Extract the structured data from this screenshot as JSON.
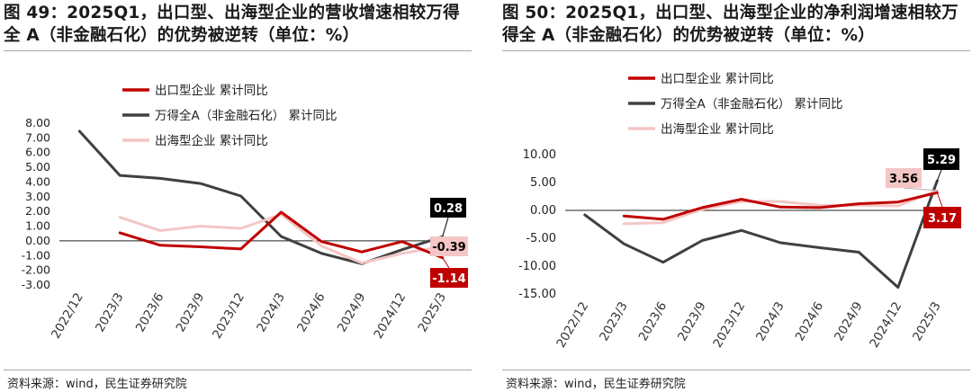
{
  "chart_data": [
    {
      "type": "line",
      "title": "图 49：2025Q1，出口型、出海型企业的营收增速相较万得全 A（非金融石化）的优势被逆转（单位：%）",
      "source": "资料来源：wind，民生证券研究院",
      "categories": [
        "2022/12",
        "2023/3",
        "2023/6",
        "2023/9",
        "2023/12",
        "2024/3",
        "2024/6",
        "2024/9",
        "2024/12",
        "2025/3"
      ],
      "ylim": [
        -3,
        8
      ],
      "yticks": [
        8,
        7,
        6,
        5,
        4,
        3,
        2,
        1,
        0,
        -1,
        -2,
        -3
      ],
      "ytick_labels": [
        "8.00",
        "7.00",
        "6.00",
        "5.00",
        "4.00",
        "3.00",
        "2.00",
        "1.00",
        "0.00",
        "-1.00",
        "-2.00",
        "-3.00"
      ],
      "legend_position": "top-left",
      "series": [
        {
          "name": "出口型企业 累计同比",
          "color": "#c00000",
          "values": [
            null,
            0.55,
            -0.3,
            -0.4,
            -0.55,
            1.95,
            -0.05,
            -0.75,
            -0.05,
            -1.14
          ]
        },
        {
          "name": "万得全A（非金融石化） 累计同比",
          "color": "#404040",
          "values": [
            7.45,
            4.45,
            4.25,
            3.9,
            3.05,
            0.3,
            -0.85,
            -1.55,
            -0.6,
            0.28
          ]
        },
        {
          "name": "出海型企业 累计同比",
          "color": "#f4c6c6",
          "values": [
            null,
            1.6,
            0.7,
            1.0,
            0.85,
            1.8,
            -0.35,
            -1.5,
            -0.85,
            -0.39
          ]
        }
      ],
      "callouts": [
        {
          "text": "0.28",
          "series": 1
        },
        {
          "text": "-0.39",
          "series": 2
        },
        {
          "text": "-1.14",
          "series": 0
        }
      ]
    },
    {
      "type": "line",
      "title": "图 50：2025Q1，出口型、出海型企业的净利润增速相较万得全 A（非金融石化）的优势被逆转（单位：%）",
      "source": "资料来源：wind，民生证券研究院",
      "categories": [
        "2022/12",
        "2023/3",
        "2023/6",
        "2023/9",
        "2023/12",
        "2024/3",
        "2024/6",
        "2024/9",
        "2024/12",
        "2025/3"
      ],
      "ylim": [
        -15,
        10
      ],
      "yticks": [
        10,
        5,
        0,
        -5,
        -10,
        -15
      ],
      "ytick_labels": [
        "10.00",
        "5.00",
        "0.00",
        "-5.00",
        "-10.00",
        "-15.00"
      ],
      "legend_position": "top-left",
      "series": [
        {
          "name": "出口型企业 累计同比",
          "color": "#c00000",
          "values": [
            null,
            -1.0,
            -1.6,
            0.5,
            2.0,
            0.6,
            0.5,
            1.2,
            1.5,
            3.17
          ]
        },
        {
          "name": "万得全A（非金融石化） 累计同比",
          "color": "#404040",
          "values": [
            -0.8,
            -6.0,
            -9.3,
            -5.4,
            -3.6,
            -5.8,
            -6.7,
            -7.5,
            -13.8,
            5.29
          ]
        },
        {
          "name": "出海型企业 累计同比",
          "color": "#f4c6c6",
          "values": [
            null,
            -2.4,
            -2.2,
            0.2,
            1.6,
            1.6,
            0.9,
            0.9,
            0.8,
            3.56
          ]
        }
      ],
      "callouts": [
        {
          "text": "5.29",
          "series": 1
        },
        {
          "text": "3.56",
          "series": 2
        },
        {
          "text": "3.17",
          "series": 0
        }
      ]
    }
  ]
}
